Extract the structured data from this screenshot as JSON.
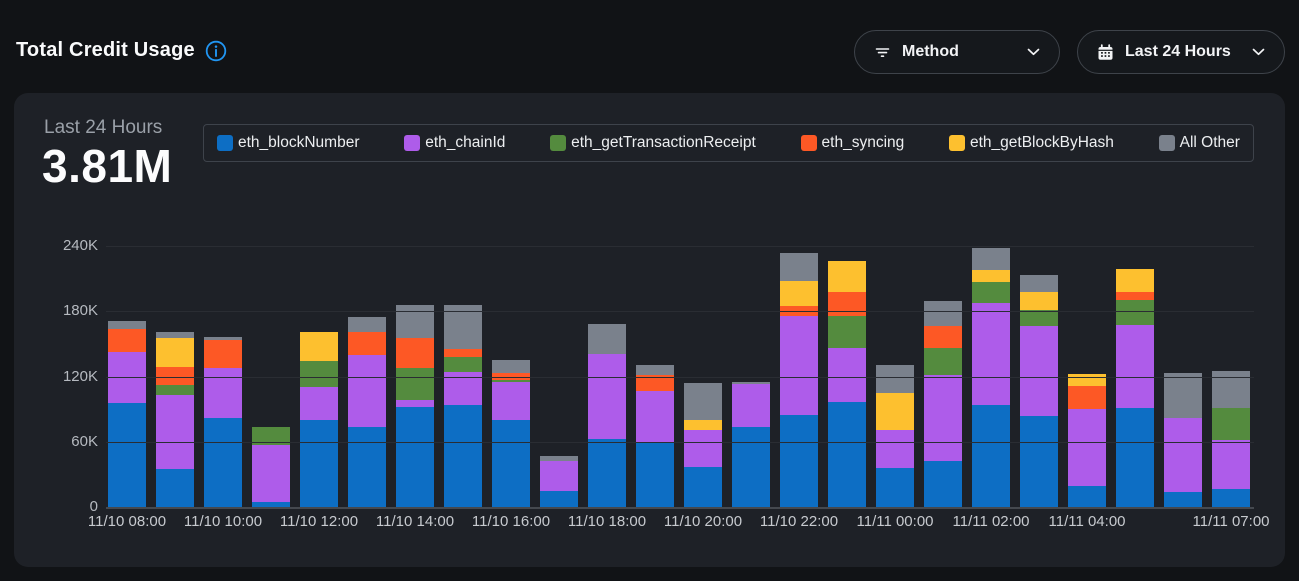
{
  "header": {
    "title": "Total Credit Usage",
    "info_icon": "info-circle-icon",
    "method_filter": {
      "label": "Method",
      "icon": "filter-icon"
    },
    "time_range": {
      "label": "Last 24 Hours",
      "icon": "calendar-icon"
    }
  },
  "summary": {
    "period_label": "Last 24 Hours",
    "total_value": "3.81M"
  },
  "colors": {
    "accent_blue": "#2196f3",
    "card_bg": "#1e2127",
    "page_bg": "#111316"
  },
  "chart_data": {
    "type": "bar",
    "stacked": true,
    "title": "Total Credit Usage",
    "value_unit": "thousands of credits (K)",
    "ylim_k": [
      0,
      240
    ],
    "bar_count": 24,
    "grid": true,
    "legend_position": "top",
    "y_ticks": [
      {
        "label": "0",
        "value": 0
      },
      {
        "label": "60K",
        "value": 60
      },
      {
        "label": "120K",
        "value": 120
      },
      {
        "label": "180K",
        "value": 180
      },
      {
        "label": "240K",
        "value": 240
      }
    ],
    "x_ticks": [
      {
        "label": "11/10 08:00",
        "bar": 0
      },
      {
        "label": "11/10 10:00",
        "bar": 2
      },
      {
        "label": "11/10 12:00",
        "bar": 4
      },
      {
        "label": "11/10 14:00",
        "bar": 6
      },
      {
        "label": "11/10 16:00",
        "bar": 8
      },
      {
        "label": "11/10 18:00",
        "bar": 10
      },
      {
        "label": "11/10 20:00",
        "bar": 12
      },
      {
        "label": "11/10 22:00",
        "bar": 14
      },
      {
        "label": "11/11 00:00",
        "bar": 16
      },
      {
        "label": "11/11 02:00",
        "bar": 18
      },
      {
        "label": "11/11 04:00",
        "bar": 20
      },
      {
        "label": "11/11 07:00",
        "bar": 23
      }
    ],
    "series": [
      {
        "name": "eth_blockNumber",
        "color": "#0d6ec4",
        "values": [
          96,
          35,
          82,
          5,
          80,
          74,
          92,
          94,
          80,
          15,
          63,
          60,
          37,
          74,
          85,
          97,
          36,
          42,
          94,
          84,
          19,
          91,
          14,
          17
        ]
      },
      {
        "name": "eth_chainId",
        "color": "#ae5cea",
        "values": [
          47,
          68,
          46,
          52,
          30,
          66,
          6,
          30,
          35,
          27,
          78,
          47,
          34,
          39,
          91,
          49,
          35,
          79,
          94,
          82,
          71,
          76,
          68,
          45
        ]
      },
      {
        "name": "eth_getTransactionReceipt",
        "color": "#548b3e",
        "values": [
          0,
          9,
          0,
          17,
          24,
          0,
          30,
          14,
          2,
          0,
          0,
          0,
          0,
          0,
          0,
          30,
          0,
          25,
          19,
          15,
          0,
          23,
          0,
          29
        ]
      },
      {
        "name": "eth_syncing",
        "color": "#fd5825",
        "values": [
          21,
          17,
          26,
          0,
          0,
          21,
          27,
          7,
          6,
          0,
          0,
          14,
          0,
          0,
          9,
          22,
          0,
          20,
          0,
          0,
          21,
          8,
          0,
          0
        ]
      },
      {
        "name": "eth_getBlockByHash",
        "color": "#fdc02f",
        "values": [
          0,
          26,
          0,
          0,
          27,
          0,
          0,
          0,
          0,
          0,
          0,
          0,
          9,
          0,
          23,
          28,
          34,
          0,
          11,
          17,
          11,
          21,
          0,
          0
        ]
      },
      {
        "name": "All Other",
        "color": "#7a818c",
        "values": [
          7,
          6,
          2,
          0,
          0,
          14,
          31,
          41,
          12,
          5,
          27,
          10,
          34,
          2,
          26,
          0,
          26,
          23,
          20,
          15,
          0,
          0,
          41,
          34
        ]
      }
    ]
  }
}
